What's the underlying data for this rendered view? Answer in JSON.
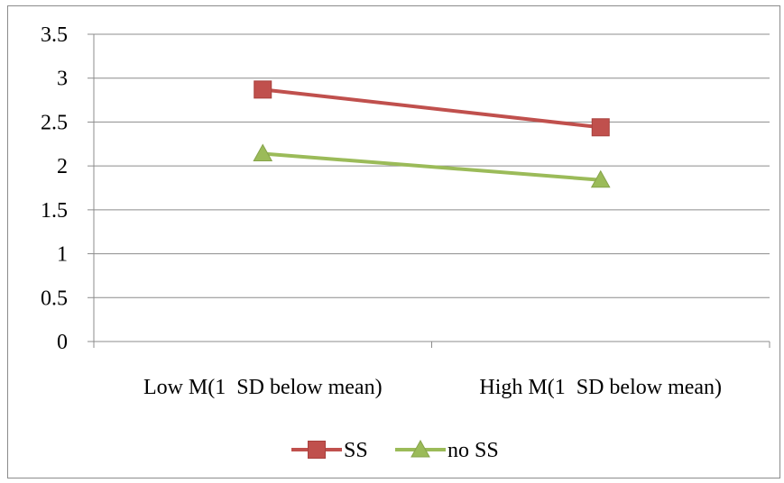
{
  "chart_data": {
    "type": "line",
    "categories": [
      "Low M(1  SD below mean)",
      "High M(1  SD below mean)"
    ],
    "series": [
      {
        "name": "SS",
        "values": [
          2.87,
          2.44
        ],
        "color": "#c0504d",
        "marker": "square"
      },
      {
        "name": "no SS",
        "values": [
          2.14,
          1.84
        ],
        "color": "#9bbb59",
        "marker": "triangle"
      }
    ],
    "ylim": [
      0,
      3.5
    ],
    "yticks": [
      "0",
      "0.5",
      "1",
      "1.5",
      "2",
      "2.5",
      "3",
      "3.5"
    ],
    "grid": true,
    "legend": "bottom",
    "title": "",
    "xlabel": "",
    "ylabel": ""
  }
}
